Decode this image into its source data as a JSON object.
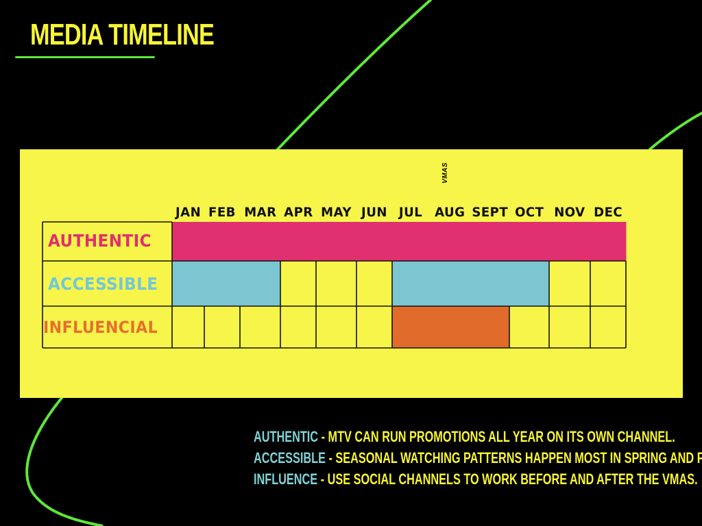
{
  "page": {
    "title": "MEDIA TIMELINE",
    "colors": {
      "background": "#000000",
      "title": "#f7f535",
      "accent_line": "#5fe83a",
      "board": "#f7f44a",
      "authentic": "#e0306f",
      "accessible": "#7cc6d2",
      "influencial": "#e06b2a",
      "note_term": "#7fd3d6"
    }
  },
  "timeline": {
    "months": [
      "JAN",
      "FEB",
      "MAR",
      "APR",
      "MAY",
      "JUN",
      "JUL",
      "AUG",
      "SEPT",
      "OCT",
      "NOV",
      "DEC"
    ],
    "event_marker": {
      "label": "VMAS",
      "month": "AUG"
    },
    "rows": [
      {
        "label": "AUTHENTIC",
        "color": "#e0306f",
        "active_months": [
          "JAN",
          "FEB",
          "MAR",
          "APR",
          "MAY",
          "JUN",
          "JUL",
          "AUG",
          "SEPT",
          "OCT",
          "NOV",
          "DEC"
        ]
      },
      {
        "label": "ACCESSIBLE",
        "color": "#7cc6d2",
        "active_months": [
          "JAN",
          "FEB",
          "MAR",
          "JUL",
          "AUG",
          "SEPT",
          "OCT"
        ]
      },
      {
        "label": "INFLUENCIAL",
        "color": "#e06b2a",
        "active_months": [
          "JUL",
          "AUG",
          "SEPT"
        ]
      }
    ]
  },
  "notes": [
    {
      "term": "AUTHENTIC",
      "text": " - MTV CAN RUN PROMOTIONS ALL YEAR ON ITS OWN CHANNEL."
    },
    {
      "term": "ACCESSIBLE",
      "text": " - SEASONAL WATCHING PATTERNS HAPPEN MOST IN SPRING AND FALL."
    },
    {
      "term": "INFLUENCE",
      "text": " - USE SOCIAL CHANNELS TO WORK BEFORE AND AFTER THE VMAS."
    }
  ]
}
